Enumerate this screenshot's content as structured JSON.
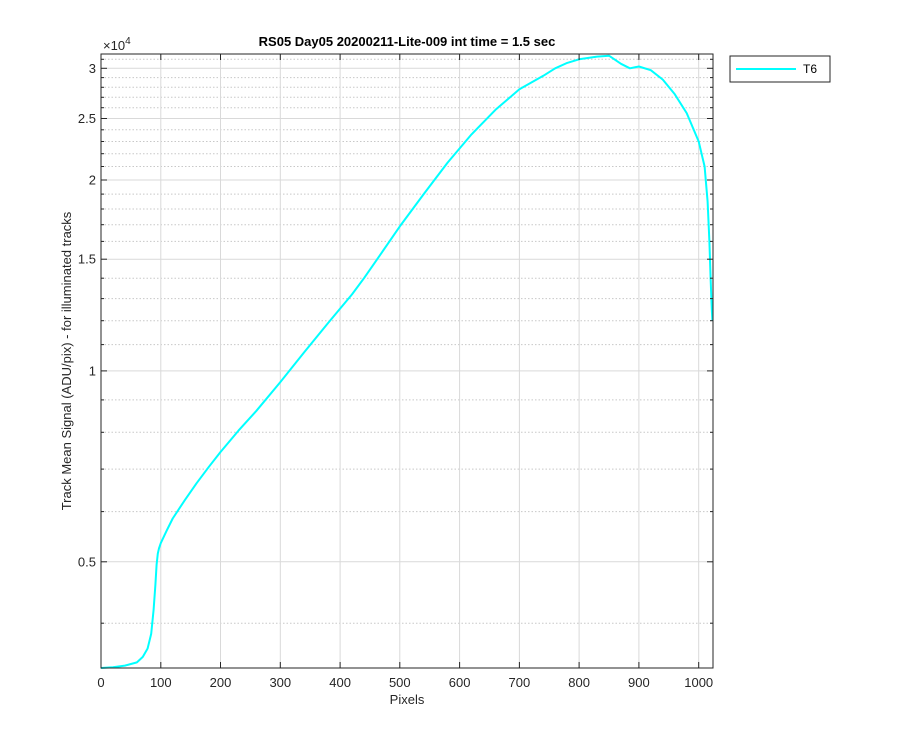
{
  "chart_data": {
    "type": "line",
    "title": "RS05 Day05 20200211-Lite-009 int time = 1.5 sec",
    "xlabel": "Pixels",
    "ylabel": "Track Mean Signal (ADU/pix) - for illuminated tracks",
    "y_exponent_label": "×10",
    "y_exponent_power": "4",
    "xlim": [
      0,
      1024
    ],
    "ylim": [
      3400,
      31600
    ],
    "y_scale": "log",
    "grid": "major and minor",
    "legend_position": "outside-top-right",
    "x_ticks": [
      0,
      100,
      200,
      300,
      400,
      500,
      600,
      700,
      800,
      900,
      1000
    ],
    "x_tick_labels": [
      "0",
      "100",
      "200",
      "300",
      "400",
      "500",
      "600",
      "700",
      "800",
      "900",
      "1000"
    ],
    "y_ticks": [
      5000,
      10000,
      15000,
      20000,
      25000,
      30000
    ],
    "y_tick_labels": [
      "0.5",
      "1",
      "1.5",
      "2",
      "2.5",
      "3"
    ],
    "y_minor_ticks": [
      4000,
      6000,
      7000,
      8000,
      9000,
      11000,
      12000,
      13000,
      14000,
      16000,
      17000,
      18000,
      19000,
      21000,
      22000,
      23000,
      24000,
      26000,
      27000,
      28000,
      29000,
      31000
    ],
    "series": [
      {
        "name": "T6",
        "color": "#00ffff",
        "x": [
          0,
          20,
          40,
          60,
          70,
          78,
          84,
          88,
          91,
          93,
          95,
          97,
          100,
          110,
          120,
          140,
          160,
          180,
          200,
          230,
          260,
          300,
          340,
          380,
          420,
          440,
          460,
          500,
          540,
          580,
          620,
          660,
          700,
          740,
          760,
          780,
          800,
          830,
          850,
          870,
          885,
          900,
          920,
          940,
          960,
          980,
          1000,
          1010,
          1015,
          1018,
          1020,
          1022,
          1023
        ],
        "y": [
          3400,
          3410,
          3430,
          3470,
          3540,
          3650,
          3850,
          4200,
          4600,
          4950,
          5150,
          5250,
          5350,
          5600,
          5850,
          6250,
          6650,
          7050,
          7450,
          8050,
          8650,
          9600,
          10700,
          11900,
          13200,
          14000,
          14900,
          16900,
          19000,
          21300,
          23600,
          25800,
          27800,
          29200,
          30000,
          30600,
          31000,
          31300,
          31400,
          30500,
          30000,
          30200,
          29800,
          28800,
          27300,
          25500,
          23000,
          21000,
          18500,
          16000,
          14000,
          12500,
          12000
        ]
      }
    ]
  }
}
